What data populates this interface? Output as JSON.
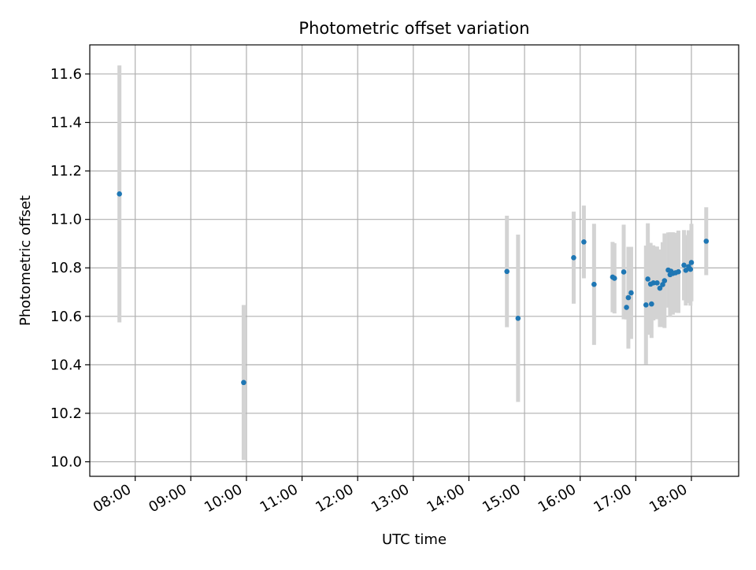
{
  "chart_data": {
    "type": "scatter",
    "title": "Photometric offset variation",
    "xlabel": "UTC time",
    "ylabel": "Photometric offset",
    "xlim": [
      "07:11",
      "18:51"
    ],
    "ylim": [
      9.94,
      11.72
    ],
    "xticks": [
      "08:00",
      "09:00",
      "10:00",
      "11:00",
      "12:00",
      "13:00",
      "14:00",
      "15:00",
      "16:00",
      "17:00",
      "18:00"
    ],
    "yticks": [
      "10.0",
      "10.2",
      "10.4",
      "10.6",
      "10.8",
      "11.0",
      "11.2",
      "11.4",
      "11.6"
    ],
    "grid": true,
    "marker_color": "#1f77b4",
    "errorbar_color": "#d3d3d3",
    "points": [
      {
        "t": "07:43",
        "y": 11.105,
        "err": 0.53
      },
      {
        "t": "09:57",
        "y": 10.327,
        "err": 0.32
      },
      {
        "t": "14:41",
        "y": 10.785,
        "err": 0.23
      },
      {
        "t": "14:53",
        "y": 10.592,
        "err": 0.345
      },
      {
        "t": "15:53",
        "y": 10.842,
        "err": 0.19
      },
      {
        "t": "16:04",
        "y": 10.907,
        "err": 0.15
      },
      {
        "t": "16:15",
        "y": 10.732,
        "err": 0.25
      },
      {
        "t": "16:35",
        "y": 10.762,
        "err": 0.145
      },
      {
        "t": "16:37",
        "y": 10.757,
        "err": 0.145
      },
      {
        "t": "16:47",
        "y": 10.783,
        "err": 0.195
      },
      {
        "t": "16:50",
        "y": 10.637,
        "err": 0.05
      },
      {
        "t": "16:52",
        "y": 10.677,
        "err": 0.21
      },
      {
        "t": "16:55",
        "y": 10.697,
        "err": 0.19
      },
      {
        "t": "17:11",
        "y": 10.647,
        "err": 0.245
      },
      {
        "t": "17:13",
        "y": 10.754,
        "err": 0.23
      },
      {
        "t": "17:16",
        "y": 10.733,
        "err": 0.17
      },
      {
        "t": "17:17",
        "y": 10.651,
        "err": 0.14
      },
      {
        "t": "17:19",
        "y": 10.738,
        "err": 0.155
      },
      {
        "t": "17:23",
        "y": 10.738,
        "err": 0.15
      },
      {
        "t": "17:26",
        "y": 10.716,
        "err": 0.16
      },
      {
        "t": "17:29",
        "y": 10.731,
        "err": 0.175
      },
      {
        "t": "17:31",
        "y": 10.747,
        "err": 0.195
      },
      {
        "t": "17:35",
        "y": 10.791,
        "err": 0.155
      },
      {
        "t": "17:37",
        "y": 10.772,
        "err": 0.175
      },
      {
        "t": "17:38",
        "y": 10.786,
        "err": 0.155
      },
      {
        "t": "17:40",
        "y": 10.777,
        "err": 0.17
      },
      {
        "t": "17:43",
        "y": 10.78,
        "err": 0.165
      },
      {
        "t": "17:46",
        "y": 10.784,
        "err": 0.17
      },
      {
        "t": "17:52",
        "y": 10.811,
        "err": 0.145
      },
      {
        "t": "17:54",
        "y": 10.79,
        "err": 0.145
      },
      {
        "t": "17:57",
        "y": 10.805,
        "err": 0.15
      },
      {
        "t": "17:59",
        "y": 10.794,
        "err": 0.15
      },
      {
        "t": "18:00",
        "y": 10.822,
        "err": 0.16
      },
      {
        "t": "18:16",
        "y": 10.91,
        "err": 0.14
      }
    ]
  }
}
